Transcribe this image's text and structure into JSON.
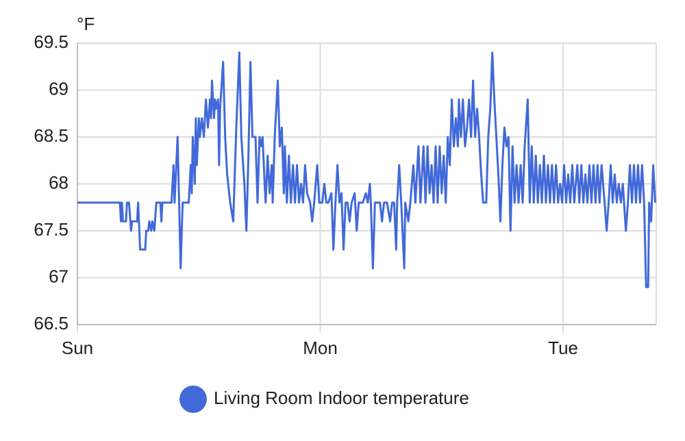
{
  "chart_data": {
    "type": "line",
    "y_unit": "°F",
    "x": [
      0,
      4.2,
      4.3,
      4.4,
      4.5,
      4.8,
      4.9,
      5.1,
      5.3,
      5.4,
      5.9,
      6.0,
      6.2,
      6.7,
      6.8,
      7.0,
      7.1,
      7.3,
      7.4,
      7.6,
      7.8,
      8.2,
      8.3,
      8.4,
      9.3,
      9.5,
      9.6,
      9.9,
      10.2,
      10.4,
      11.0,
      11.2,
      11.3,
      11.4,
      11.6,
      11.7,
      11.8,
      12.0,
      12.1,
      12.3,
      12.5,
      12.7,
      12.9,
      13.1,
      13.2,
      13.3,
      13.5,
      13.6,
      13.7,
      13.9,
      14.0,
      14.1,
      14.4,
      14.6,
      14.8,
      15.1,
      15.4,
      15.7,
      16.0,
      16.2,
      16.5,
      16.7,
      16.9,
      17.1,
      17.3,
      17.6,
      17.8,
      18.0,
      18.2,
      18.3,
      18.5,
      18.6,
      18.8,
      19.0,
      19.2,
      19.3,
      19.5,
      19.8,
      20.0,
      20.2,
      20.4,
      20.5,
      20.7,
      20.9,
      21.1,
      21.3,
      21.5,
      21.7,
      21.9,
      22.1,
      22.3,
      22.5,
      22.7,
      23.0,
      23.2,
      23.4,
      23.7,
      23.9,
      24.2,
      24.4,
      24.6,
      24.8,
      25.1,
      25.3,
      25.5,
      25.7,
      25.9,
      26.1,
      26.3,
      26.5,
      26.7,
      26.9,
      27.1,
      27.4,
      27.6,
      27.8,
      28.2,
      28.5,
      28.7,
      28.9,
      29.0,
      29.2,
      29.4,
      29.9,
      30.1,
      30.3,
      30.6,
      30.9,
      31.1,
      31.3,
      31.5,
      31.6,
      31.8,
      32.0,
      32.3,
      32.4,
      32.7,
      32.9,
      33.2,
      33.4,
      33.7,
      33.9,
      34.2,
      34.4,
      34.6,
      34.8,
      35.0,
      35.2,
      35.4,
      35.6,
      35.8,
      36.0,
      36.2,
      36.4,
      36.6,
      36.8,
      37.0,
      37.2,
      37.4,
      37.6,
      37.7,
      37.9,
      38.1,
      38.3,
      38.5,
      38.7,
      38.9,
      39.1,
      39.3,
      39.5,
      39.7,
      39.9,
      40.1,
      40.4,
      40.6,
      40.8,
      41.0,
      41.2,
      41.4,
      41.6,
      41.8,
      42.0,
      42.2,
      42.4,
      42.6,
      42.8,
      43.0,
      43.2,
      43.4,
      43.6,
      43.8,
      44.0,
      44.2,
      44.5,
      44.7,
      44.9,
      45.1,
      45.3,
      45.5,
      45.7,
      45.9,
      46.1,
      46.3,
      46.5,
      46.7,
      46.9,
      47.1,
      47.3,
      47.5,
      47.7,
      47.9,
      48.1,
      48.3,
      48.5,
      48.7,
      48.9,
      49.1,
      49.4,
      49.6,
      49.8,
      50.0,
      50.2,
      50.4,
      50.6,
      50.8,
      51.0,
      51.2,
      51.4,
      51.6,
      51.8,
      52.1,
      52.3,
      52.5,
      52.7,
      52.9,
      53.1,
      53.3,
      53.5,
      53.7,
      53.9,
      54.2,
      54.4,
      54.6,
      54.8,
      55.0,
      55.2,
      55.4,
      55.6,
      55.8,
      56.0,
      56.2,
      56.4,
      56.5,
      56.7,
      56.9,
      57.1
    ],
    "series": [
      {
        "name": "Living Room Indoor temperature",
        "color": "#4169d9",
        "values": [
          67.8,
          67.8,
          67.6,
          67.8,
          67.6,
          67.6,
          67.8,
          67.8,
          67.5,
          67.6,
          67.6,
          67.8,
          67.3,
          67.3,
          67.5,
          67.5,
          67.6,
          67.5,
          67.6,
          67.5,
          67.8,
          67.8,
          67.6,
          67.8,
          67.8,
          68.2,
          67.8,
          68.5,
          67.1,
          67.8,
          67.8,
          68.2,
          67.9,
          68.5,
          68.0,
          68.7,
          68.2,
          68.7,
          68.5,
          68.7,
          68.5,
          68.9,
          68.6,
          68.9,
          68.7,
          69.1,
          68.7,
          68.9,
          68.8,
          68.9,
          68.2,
          68.8,
          69.3,
          68.5,
          68.1,
          67.8,
          67.6,
          68.6,
          69.4,
          68.5,
          68.0,
          67.5,
          68.3,
          69.3,
          68.5,
          68.5,
          67.8,
          68.5,
          68.4,
          68.5,
          68.0,
          67.8,
          68.3,
          67.9,
          68.2,
          67.8,
          68.5,
          69.1,
          68.4,
          68.6,
          67.9,
          68.4,
          67.8,
          68.3,
          67.8,
          68.2,
          67.8,
          68.2,
          67.8,
          68.0,
          67.8,
          68.2,
          67.9,
          67.8,
          67.6,
          67.8,
          68.2,
          67.8,
          67.8,
          68.0,
          67.8,
          67.8,
          67.9,
          67.3,
          67.8,
          68.2,
          67.8,
          67.9,
          67.3,
          67.8,
          67.8,
          67.6,
          67.8,
          67.9,
          67.5,
          67.8,
          67.8,
          67.9,
          67.8,
          68.0,
          67.8,
          67.1,
          67.8,
          67.8,
          67.6,
          67.8,
          67.8,
          67.6,
          67.8,
          67.8,
          67.3,
          67.8,
          68.2,
          67.8,
          67.1,
          67.8,
          67.6,
          67.8,
          68.2,
          67.8,
          68.4,
          67.8,
          68.4,
          67.8,
          68.4,
          67.9,
          68.2,
          67.8,
          68.4,
          67.8,
          68.4,
          67.9,
          68.3,
          67.8,
          68.5,
          68.2,
          68.9,
          68.4,
          68.7,
          68.4,
          68.9,
          68.5,
          68.9,
          68.4,
          68.6,
          68.9,
          68.5,
          69.1,
          68.5,
          68.8,
          68.5,
          68.1,
          67.8,
          67.8,
          68.5,
          68.8,
          69.4,
          68.9,
          68.5,
          68.1,
          67.6,
          68.2,
          68.6,
          68.4,
          68.5,
          67.5,
          68.4,
          67.8,
          68.2,
          67.8,
          68.2,
          67.8,
          68.4,
          68.9,
          67.8,
          68.4,
          67.8,
          68.3,
          67.8,
          68.2,
          67.8,
          68.3,
          67.8,
          68.2,
          67.8,
          68.2,
          67.8,
          68.2,
          67.8,
          68.0,
          67.8,
          68.2,
          67.8,
          68.1,
          67.8,
          68.2,
          67.8,
          68.2,
          67.8,
          68.2,
          67.8,
          68.1,
          67.8,
          68.2,
          67.8,
          68.2,
          67.8,
          68.2,
          67.8,
          68.2,
          67.8,
          67.5,
          67.8,
          68.2,
          67.8,
          68.1,
          67.8,
          68.0,
          67.8,
          68.0,
          67.5,
          67.8,
          68.2,
          67.8,
          68.2,
          67.8,
          68.2,
          67.8,
          68.2,
          67.8,
          66.9,
          66.9,
          67.8,
          67.6,
          68.2,
          67.8
        ]
      }
    ],
    "xlim": [
      0,
      57.2
    ],
    "xticks": [
      {
        "value": 0,
        "label": "Sun"
      },
      {
        "value": 24,
        "label": "Mon"
      },
      {
        "value": 48,
        "label": "Tue"
      }
    ],
    "ylim": [
      66.5,
      69.5
    ],
    "yticks": [
      66.5,
      67,
      67.5,
      68,
      68.5,
      69,
      69.5
    ],
    "grid": true,
    "legend": "bottom"
  }
}
